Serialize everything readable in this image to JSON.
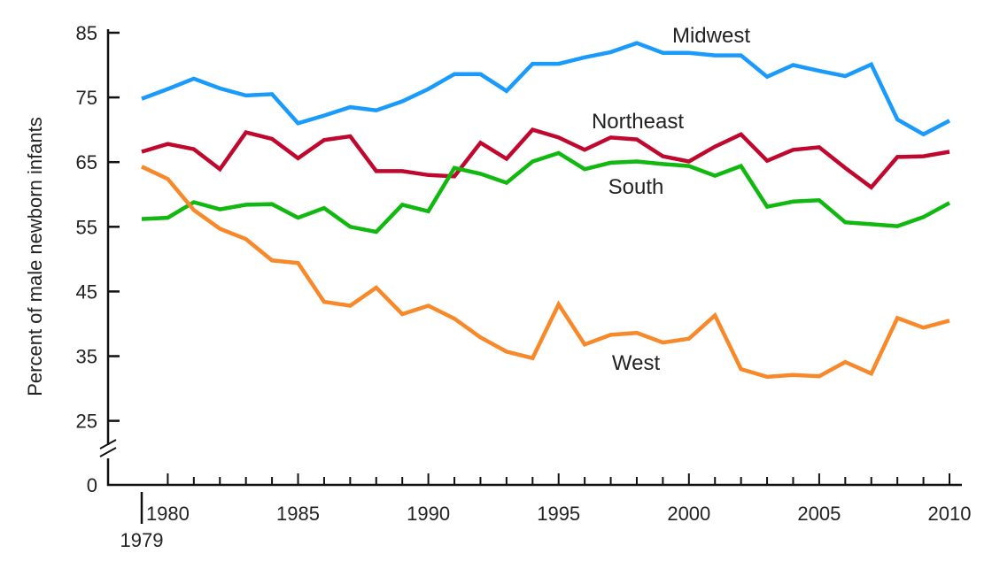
{
  "chart_data": {
    "type": "line",
    "title": "",
    "xlabel": "",
    "ylabel": "Percent of male newborn infants",
    "x": [
      1979,
      1980,
      1981,
      1982,
      1983,
      1984,
      1985,
      1986,
      1987,
      1988,
      1989,
      1990,
      1991,
      1992,
      1993,
      1994,
      1995,
      1996,
      1997,
      1998,
      1999,
      2000,
      2001,
      2002,
      2003,
      2004,
      2005,
      2006,
      2007,
      2008,
      2009,
      2010
    ],
    "xlim": [
      1979,
      2010
    ],
    "ylim": [
      25,
      85
    ],
    "y_ticks": [
      85,
      75,
      65,
      55,
      45,
      35,
      25
    ],
    "y_zero_label": "0",
    "y_axis_break": true,
    "x_tick_labels": [
      "1980",
      "1985",
      "1990",
      "1995",
      "2000",
      "2005",
      "2010"
    ],
    "x_start_label": "1979",
    "grid": false,
    "series": [
      {
        "name": "Midwest",
        "color": "#1a9bfc",
        "values": [
          74.8,
          76.3,
          77.9,
          76.4,
          75.3,
          75.5,
          71.0,
          72.2,
          73.5,
          73.0,
          74.4,
          76.3,
          78.6,
          78.6,
          76.0,
          80.2,
          80.2,
          81.2,
          82.0,
          83.4,
          81.9,
          81.9,
          81.5,
          81.5,
          78.2,
          80.0,
          79.1,
          78.3,
          80.1,
          71.6,
          69.3,
          71.4
        ]
      },
      {
        "name": "Northeast",
        "color": "#c0082f",
        "values": [
          66.6,
          67.8,
          67.0,
          63.9,
          69.6,
          68.6,
          65.6,
          68.4,
          69.0,
          63.6,
          63.6,
          63.0,
          62.8,
          68.0,
          65.5,
          70.0,
          68.8,
          66.9,
          68.8,
          68.5,
          65.9,
          65.1,
          67.4,
          69.3,
          65.2,
          66.9,
          67.3,
          64.1,
          61.1,
          65.8,
          65.9,
          66.6
        ]
      },
      {
        "name": "South",
        "color": "#10b810",
        "values": [
          56.2,
          56.4,
          58.8,
          57.7,
          58.4,
          58.5,
          56.4,
          57.9,
          55.0,
          54.2,
          58.4,
          57.4,
          64.1,
          63.2,
          61.8,
          65.1,
          66.4,
          63.9,
          64.9,
          65.1,
          64.7,
          64.4,
          62.9,
          64.4,
          58.1,
          58.9,
          59.1,
          55.7,
          55.4,
          55.1,
          56.5,
          58.7
        ]
      },
      {
        "name": "West",
        "color": "#f7892a",
        "values": [
          64.3,
          62.4,
          57.6,
          54.7,
          53.1,
          49.8,
          49.4,
          43.4,
          42.8,
          45.6,
          41.5,
          42.8,
          40.8,
          37.9,
          35.7,
          34.7,
          43.0,
          36.8,
          38.3,
          38.6,
          37.1,
          37.7,
          41.3,
          33.0,
          31.8,
          32.1,
          31.9,
          34.1,
          32.3,
          40.9,
          39.4,
          40.5
        ]
      }
    ]
  }
}
